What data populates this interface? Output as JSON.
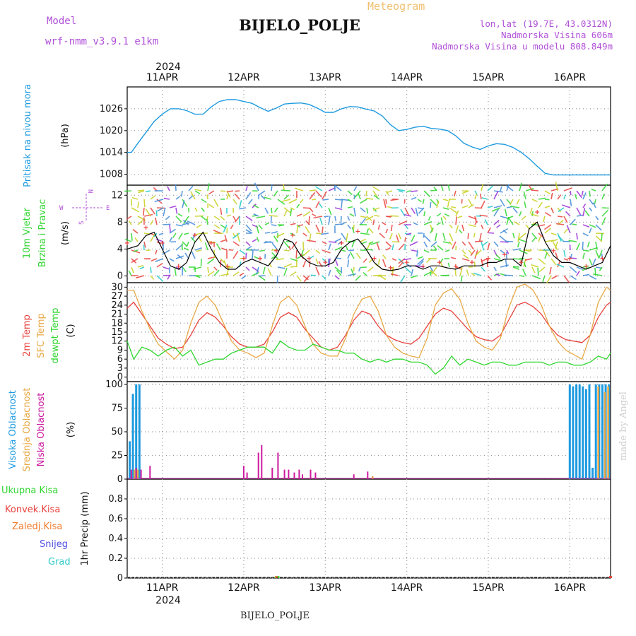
{
  "header": {
    "title": "BIJELO_POLJE",
    "chart_kind": "Meteogram",
    "model_label": "Model",
    "model_name": "wrf-nmm_v3.9.1  e1km",
    "coords": "lon,lat (19.7E, 43.0312N)",
    "elevation": "Nadmorska Visina 606m",
    "model_elevation": "Nadmorska Visina u modelu 808.849m",
    "footer_station": "BIJELO_POLJE",
    "watermark": "made by Angel",
    "year": "2024"
  },
  "colors": {
    "pressure": "#1e9be0",
    "temp2m": "#e8413c",
    "sfc": "#e8a845",
    "dewpt": "#2fd62f",
    "high_cloud": "#1e9be0",
    "mid_cloud": "#e8a845",
    "low_cloud": "#cc1aa0",
    "total_precip": "#2fd62f",
    "conv_precip": "#e8413c",
    "frozen": "#f07a2a",
    "snow": "#5050e0",
    "hail": "#33cccc",
    "label_purple": "#b050d8",
    "label_orange": "#f0c070"
  },
  "chart_data": [
    {
      "type": "line",
      "panel": "pressure",
      "ylabel": [
        "Pritisak na nivou mora",
        "(hPa)"
      ],
      "unit": "hPa",
      "ylim": [
        1005,
        1032
      ],
      "yticks": [
        1008,
        1014,
        1020,
        1026
      ],
      "x_date_ticks": [
        "11APR",
        "12APR",
        "13APR",
        "14APR",
        "15APR",
        "16APR"
      ],
      "x_start_day": 10.57,
      "x_end_day": 16.5,
      "grid": true,
      "series": [
        {
          "key": "mslp",
          "x": [
            10.57,
            10.62,
            10.7,
            10.8,
            10.9,
            11.0,
            11.1,
            11.2,
            11.3,
            11.4,
            11.5,
            11.6,
            11.7,
            11.8,
            11.9,
            12.0,
            12.1,
            12.2,
            12.3,
            12.4,
            12.5,
            12.6,
            12.7,
            12.8,
            12.9,
            13.0,
            13.1,
            13.2,
            13.3,
            13.4,
            13.5,
            13.6,
            13.7,
            13.8,
            13.9,
            14.0,
            14.1,
            14.2,
            14.3,
            14.4,
            14.5,
            14.6,
            14.7,
            14.8,
            14.9,
            15.0,
            15.1,
            15.2,
            15.3,
            15.4,
            15.5,
            15.6,
            15.7,
            15.8,
            15.9,
            16.0,
            16.1,
            16.2,
            16.3,
            16.4,
            16.5
          ],
          "y": [
            1014,
            1014,
            1016.5,
            1019.5,
            1022.5,
            1024.5,
            1026,
            1026,
            1025.5,
            1024.5,
            1024.5,
            1026.5,
            1028,
            1028.5,
            1028.5,
            1028,
            1027.5,
            1026.3,
            1025.3,
            1026.2,
            1027.3,
            1027.5,
            1027.6,
            1027.2,
            1026.2,
            1025,
            1025,
            1026,
            1026.6,
            1026.5,
            1025.9,
            1025.4,
            1024,
            1021.6,
            1020,
            1020.3,
            1020.9,
            1021.2,
            1020.6,
            1020.4,
            1020,
            1018.6,
            1016.5,
            1015.5,
            1014.8,
            1015.8,
            1016.4,
            1016.2,
            1015.4,
            1014.1,
            1012.3,
            1010.2,
            1008.2,
            1007.8,
            1007.8,
            1007.8,
            1007.8,
            1007.8,
            1007.8,
            1007.8,
            1007.8
          ]
        }
      ]
    },
    {
      "type": "line",
      "panel": "wind",
      "ylabel": [
        "10m Vjetar",
        "Brzina i Pravac",
        "(m/s)"
      ],
      "legend_compass": [
        "N",
        "W",
        "E",
        "S"
      ],
      "unit": "m/s",
      "ylim": [
        -1,
        13.5
      ],
      "yticks": [
        0,
        4,
        8,
        12
      ],
      "series": [
        {
          "key": "wind_speed",
          "x": [
            10.57,
            10.7,
            10.8,
            10.9,
            11.0,
            11.1,
            11.2,
            11.3,
            11.4,
            11.5,
            11.6,
            11.7,
            11.8,
            11.9,
            12.0,
            12.1,
            12.2,
            12.3,
            12.4,
            12.5,
            12.6,
            12.7,
            12.8,
            12.9,
            13.0,
            13.1,
            13.2,
            13.3,
            13.4,
            13.5,
            13.6,
            13.7,
            13.8,
            13.9,
            14.0,
            14.1,
            14.2,
            14.3,
            14.4,
            14.5,
            14.6,
            14.7,
            14.8,
            14.9,
            15.0,
            15.1,
            15.2,
            15.3,
            15.4,
            15.5,
            15.6,
            15.7,
            15.8,
            15.9,
            16.0,
            16.1,
            16.2,
            16.3,
            16.4,
            16.5
          ],
          "y": [
            4,
            4.5,
            6,
            6.5,
            4,
            1.5,
            1,
            2,
            5,
            6.5,
            4,
            2,
            1,
            1,
            2,
            2.5,
            2,
            1.5,
            3,
            5.5,
            5,
            3,
            2,
            1.5,
            1.5,
            2,
            4,
            5,
            5.5,
            4,
            2,
            1,
            0.8,
            1,
            1.5,
            1.5,
            1,
            1.5,
            1.5,
            1.2,
            1,
            1.5,
            1.5,
            1.5,
            2,
            2,
            2.5,
            2.5,
            1.5,
            7,
            8,
            5,
            3,
            2,
            2,
            1.5,
            1,
            1.5,
            2,
            4.5
          ]
        }
      ]
    },
    {
      "type": "line",
      "panel": "temperature",
      "ylabel": [
        "2m Temp",
        "SFC Temp",
        "dewpt Temp",
        "(C)"
      ],
      "unit": "C",
      "ylim": [
        -1.5,
        31.5
      ],
      "yticks": [
        0,
        3,
        6,
        9,
        12,
        15,
        18,
        21,
        24,
        27,
        30
      ],
      "series": [
        {
          "name": "2m Temp",
          "key": "t2m",
          "x": [
            10.57,
            10.65,
            10.75,
            10.85,
            10.95,
            11.05,
            11.15,
            11.25,
            11.35,
            11.45,
            11.55,
            11.65,
            11.75,
            11.85,
            11.95,
            12.05,
            12.15,
            12.25,
            12.35,
            12.45,
            12.55,
            12.65,
            12.75,
            12.85,
            12.95,
            13.05,
            13.15,
            13.25,
            13.35,
            13.45,
            13.55,
            13.65,
            13.75,
            13.85,
            13.95,
            14.05,
            14.15,
            14.25,
            14.35,
            14.45,
            14.55,
            14.65,
            14.75,
            14.85,
            14.95,
            15.05,
            15.15,
            15.25,
            15.35,
            15.45,
            15.55,
            15.65,
            15.75,
            15.85,
            15.95,
            16.05,
            16.15,
            16.25,
            16.35,
            16.45,
            16.5
          ],
          "y": [
            23,
            25,
            21,
            17,
            13,
            11,
            9.5,
            10,
            14,
            19,
            21.5,
            20,
            17,
            13.5,
            11,
            10,
            10,
            11,
            15,
            20,
            21.5,
            20,
            16,
            13,
            10,
            9,
            10,
            14,
            19,
            22,
            21,
            17,
            14,
            12.5,
            11.5,
            11,
            13,
            17,
            21,
            23,
            22,
            19,
            16,
            13.5,
            12.5,
            12,
            14,
            19,
            24,
            25,
            23.5,
            21,
            17,
            14,
            12.5,
            12,
            11.5,
            14,
            20,
            24,
            25
          ]
        },
        {
          "name": "SFC Temp",
          "key": "tsfc",
          "x": [
            10.57,
            10.65,
            10.75,
            10.85,
            10.95,
            11.05,
            11.15,
            11.25,
            11.35,
            11.45,
            11.55,
            11.65,
            11.75,
            11.85,
            11.95,
            12.05,
            12.15,
            12.25,
            12.35,
            12.45,
            12.55,
            12.65,
            12.75,
            12.85,
            12.95,
            13.05,
            13.15,
            13.25,
            13.35,
            13.45,
            13.55,
            13.65,
            13.75,
            13.85,
            13.95,
            14.05,
            14.15,
            14.25,
            14.35,
            14.45,
            14.55,
            14.65,
            14.75,
            14.85,
            14.95,
            15.05,
            15.15,
            15.25,
            15.35,
            15.45,
            15.55,
            15.65,
            15.75,
            15.85,
            15.95,
            16.05,
            16.15,
            16.25,
            16.35,
            16.45,
            16.5
          ],
          "y": [
            29,
            29,
            22,
            16,
            11,
            8.5,
            6,
            9,
            18,
            25,
            27,
            24,
            18,
            12,
            9,
            8,
            6.5,
            8,
            17,
            25,
            27,
            24,
            17,
            11,
            8,
            7,
            7,
            13,
            21,
            26,
            27,
            22,
            14,
            10,
            8,
            7,
            6.5,
            13,
            24,
            28,
            29.5,
            26,
            18,
            12,
            10,
            9,
            13,
            23,
            30,
            31,
            29,
            24,
            17,
            12,
            9,
            7.5,
            6,
            14,
            25,
            30,
            29
          ]
        },
        {
          "name": "dewpt Temp",
          "key": "td",
          "x": [
            10.57,
            10.65,
            10.75,
            10.85,
            10.95,
            11.05,
            11.15,
            11.25,
            11.35,
            11.45,
            11.55,
            11.65,
            11.75,
            11.85,
            11.95,
            12.05,
            12.15,
            12.25,
            12.35,
            12.45,
            12.55,
            12.65,
            12.75,
            12.85,
            12.95,
            13.05,
            13.15,
            13.25,
            13.35,
            13.45,
            13.55,
            13.65,
            13.75,
            13.85,
            13.95,
            14.05,
            14.15,
            14.25,
            14.35,
            14.45,
            14.55,
            14.65,
            14.75,
            14.85,
            14.95,
            15.05,
            15.15,
            15.25,
            15.35,
            15.45,
            15.55,
            15.65,
            15.75,
            15.85,
            15.95,
            16.05,
            16.15,
            16.25,
            16.35,
            16.45,
            16.5
          ],
          "y": [
            12,
            6,
            10,
            9,
            7,
            9,
            10,
            7,
            9,
            4,
            5,
            6,
            6,
            8,
            9,
            10,
            10,
            10,
            8,
            12,
            10,
            9,
            9,
            11,
            10,
            9,
            9,
            8,
            8,
            6,
            5,
            6,
            5,
            6,
            6,
            5,
            5,
            4,
            1,
            3,
            7,
            4,
            6,
            5,
            4,
            5,
            5,
            4,
            4,
            5,
            5,
            5,
            4,
            5,
            5,
            4,
            4,
            5,
            7,
            6,
            8
          ]
        }
      ]
    },
    {
      "type": "bar",
      "panel": "cloud",
      "ylabel": [
        "Visoka Oblacnost",
        "Srednja Oblacnost",
        "Niska Oblacnost",
        "(%)"
      ],
      "unit": "%",
      "ylim": [
        0,
        103
      ],
      "yticks": [
        0,
        25,
        50,
        75,
        100
      ],
      "series": [
        {
          "name": "Visoka Oblacnost",
          "key": "high",
          "x": [
            10.6,
            10.64,
            10.68,
            10.72,
            16.0,
            16.04,
            16.08,
            16.12,
            16.16,
            16.2,
            16.24,
            16.28,
            16.32,
            16.36,
            16.4,
            16.44,
            16.48
          ],
          "y": [
            40,
            90,
            100,
            100,
            100,
            98,
            100,
            100,
            98,
            95,
            100,
            12,
            100,
            100,
            100,
            100,
            100
          ]
        },
        {
          "name": "Srednja Oblacnost",
          "key": "mid",
          "x": [
            10.66,
            10.7,
            13.58,
            16.35,
            16.43,
            16.47
          ],
          "y": [
            10,
            10,
            3,
            98,
            92,
            98
          ]
        },
        {
          "name": "Niska Oblacnost",
          "key": "low",
          "x": [
            10.62,
            10.68,
            10.74,
            10.85,
            12.0,
            12.04,
            12.18,
            12.22,
            12.35,
            12.42,
            12.5,
            12.55,
            12.62,
            12.68,
            12.72,
            12.82,
            12.88,
            13.35,
            13.52
          ],
          "y": [
            10,
            12,
            10,
            14,
            14,
            7,
            28,
            36,
            12,
            28,
            10,
            10,
            7,
            10,
            5,
            10,
            7,
            5,
            8
          ]
        }
      ]
    },
    {
      "type": "bar",
      "panel": "precip",
      "ylabel": [
        "1hr Precip (mm)"
      ],
      "legend": [
        "Ukupna Kisa",
        "Konvek.Kisa",
        "Zaledj.Kisa",
        "Snijeg",
        "Grad"
      ],
      "unit": "mm",
      "ylim": [
        0,
        1.0
      ],
      "yticks": [
        0,
        0.2,
        0.4,
        0.6,
        0.8
      ],
      "series": [
        {
          "name": "Ukupna Kisa",
          "key": "total",
          "x": [
            12.39,
            12.42,
            16.5
          ],
          "y": [
            0.01,
            0.02,
            0.02
          ]
        },
        {
          "name": "Konvek.Kisa",
          "key": "conv",
          "x": [
            16.5
          ],
          "y": [
            0.02
          ]
        },
        {
          "name": "Zaledj.Kisa",
          "key": "frozen",
          "x": [
            12.4
          ],
          "y": [
            0.02
          ]
        }
      ]
    }
  ]
}
